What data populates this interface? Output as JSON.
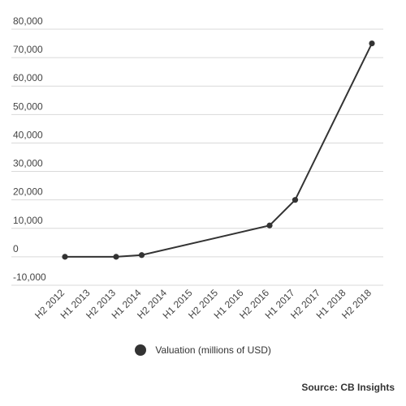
{
  "chart_data": {
    "type": "line",
    "categories": [
      "H2 2012",
      "H1 2013",
      "H2 2013",
      "H1 2014",
      "H2 2014",
      "H1 2015",
      "H2 2015",
      "H1 2016",
      "H2 2016",
      "H1 2017",
      "H2 2017",
      "H1 2018",
      "H2 2018"
    ],
    "yticks": [
      "80,000",
      "70,000",
      "60,000",
      "50,000",
      "40,000",
      "30,000",
      "20,000",
      "10,000",
      "0",
      "-10,000"
    ],
    "ylim": [
      -10000,
      80000
    ],
    "series": [
      {
        "name": "Valuation (millions of USD)",
        "color": "#333333",
        "points": [
          {
            "x": "H2 2012",
            "y": 0
          },
          {
            "x": "H2 2013",
            "y": 0
          },
          {
            "x": "H1 2014",
            "y": 600
          },
          {
            "x": "H2 2016",
            "y": 11000
          },
          {
            "x": "H1 2017",
            "y": 20000
          },
          {
            "x": "H2 2018",
            "y": 75000
          }
        ]
      }
    ],
    "grid": true,
    "legend_position": "bottom-center",
    "source": "Source: CB Insights"
  }
}
